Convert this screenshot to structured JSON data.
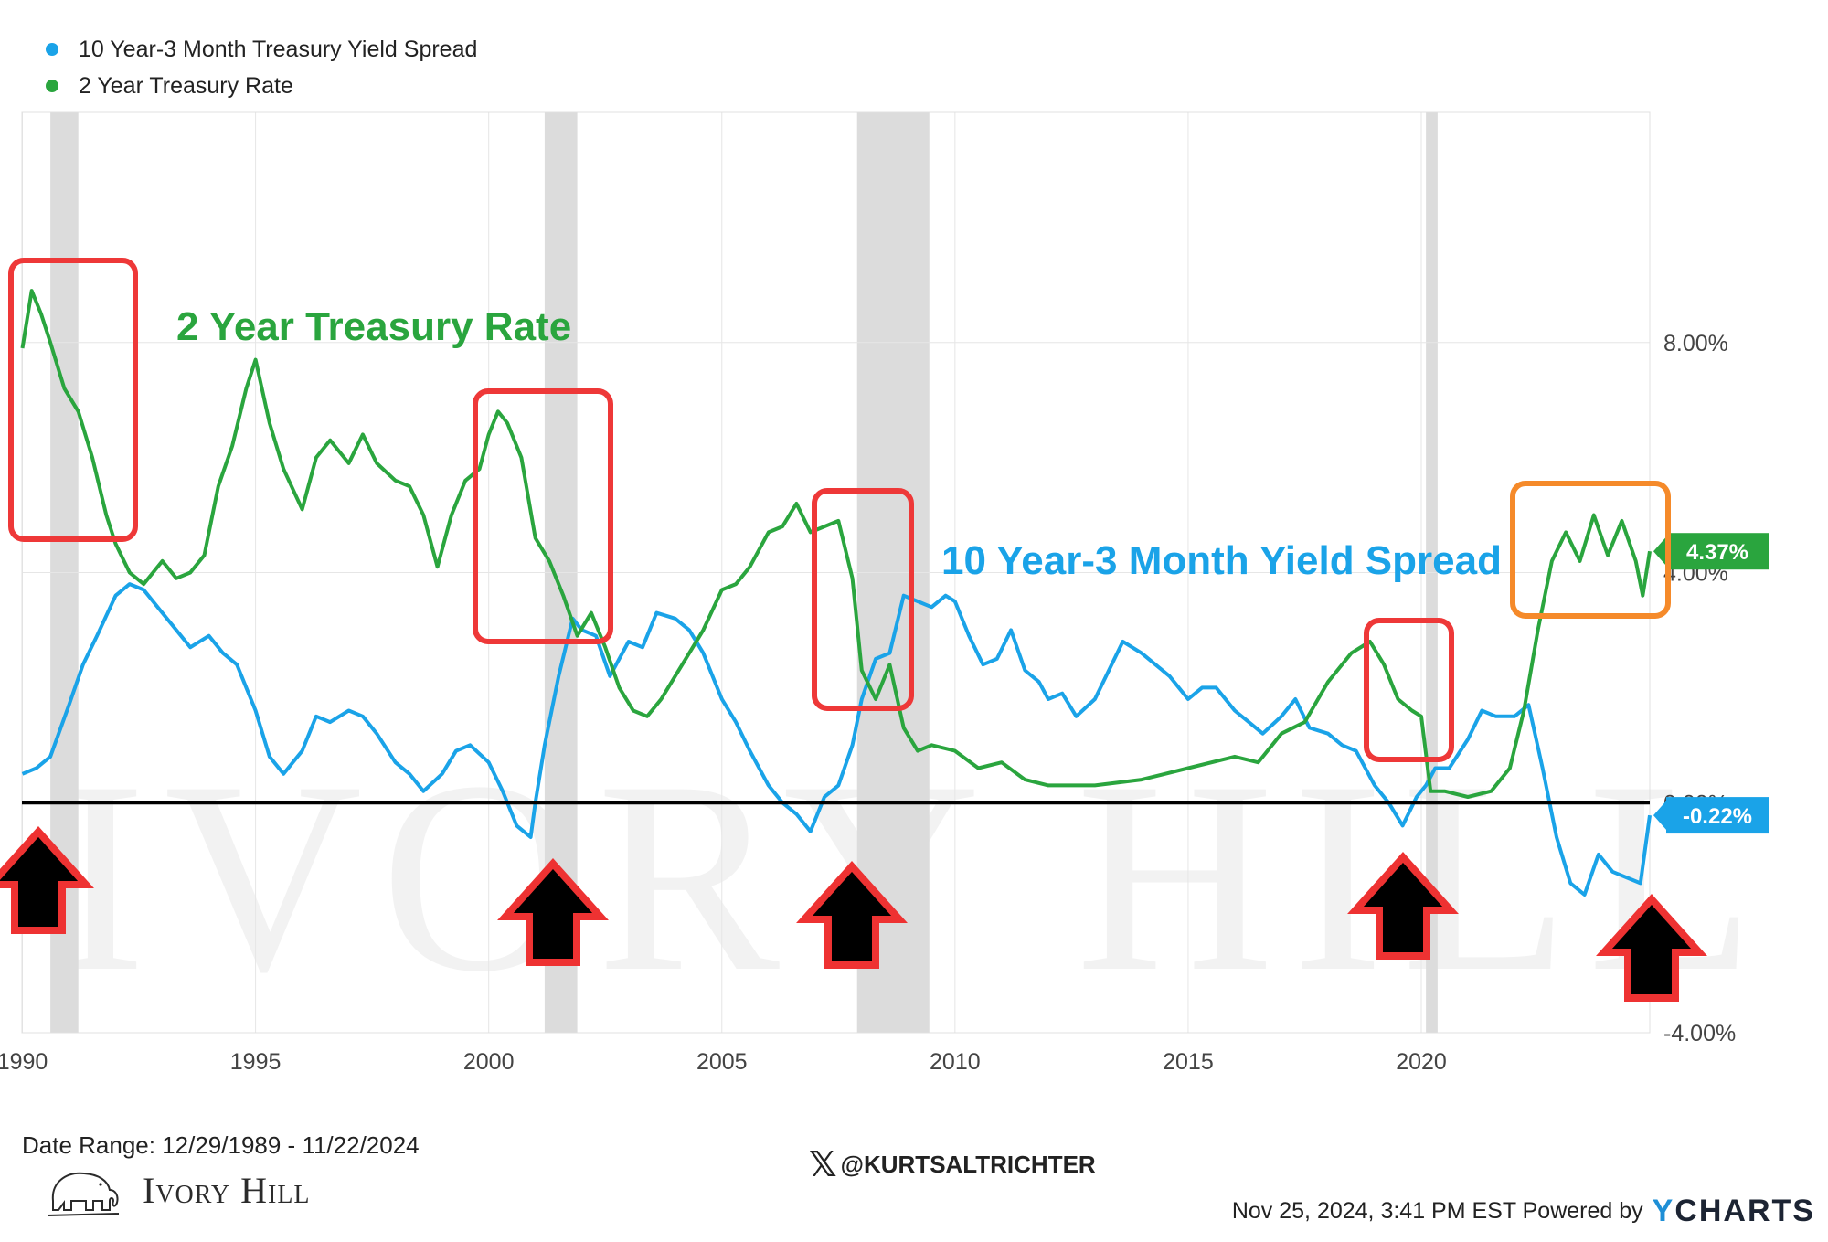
{
  "legend": [
    {
      "label": "10 Year-3 Month Treasury Yield Spread",
      "color": "#1aa3e8"
    },
    {
      "label": "2 Year Treasury Rate",
      "color": "#2aa53e"
    }
  ],
  "annotations": {
    "green_title": "2 Year Treasury Rate",
    "blue_title": "10 Year-3 Month Yield Spread",
    "green_value": "4.37%",
    "blue_value": "-0.22%"
  },
  "footer": {
    "date_range": "Date Range: 12/29/1989 - 11/22/2024",
    "handle": "@KURTSALTRICHTER",
    "timestamp": "Nov 25, 2024, 3:41 PM EST Powered by",
    "ycharts": "YCHARTS",
    "brand": "Ivory Hill"
  },
  "watermark": "IVORY HILL",
  "colors": {
    "spread": "#1aa3e8",
    "rate": "#2aa53e",
    "recession": "#dcdcdc",
    "box_red": "#ee3838",
    "box_orange": "#f58a2a",
    "arrow_red": "#ee3232",
    "zero_line": "#000000"
  },
  "chart_data": {
    "type": "line",
    "x_axis": {
      "range": [
        1989.99,
        2024.9
      ],
      "ticks": [
        "1990",
        "1995",
        "2000",
        "2005",
        "2010",
        "2015",
        "2020"
      ],
      "tick_values": [
        1990,
        1995,
        2000,
        2005,
        2010,
        2015,
        2020
      ]
    },
    "y_axis": {
      "range": [
        -4,
        12
      ],
      "ticks": [
        "8.00%",
        "4.00%",
        "0.00%",
        "-4.00%"
      ],
      "tick_values": [
        8,
        4,
        0,
        -4
      ],
      "position": "right"
    },
    "grid": true,
    "recessions": [
      [
        1990.6,
        1991.2
      ],
      [
        2001.2,
        2001.9
      ],
      [
        2007.9,
        2009.45
      ],
      [
        2020.1,
        2020.35
      ]
    ],
    "series": [
      {
        "name": "10 Year-3 Month Treasury Yield Spread",
        "x": [
          1990.0,
          1990.3,
          1990.6,
          1991.0,
          1991.3,
          1991.6,
          1992.0,
          1992.3,
          1992.6,
          1993.0,
          1993.3,
          1993.6,
          1994.0,
          1994.3,
          1994.6,
          1995.0,
          1995.3,
          1995.6,
          1996.0,
          1996.3,
          1996.6,
          1997.0,
          1997.3,
          1997.6,
          1998.0,
          1998.3,
          1998.6,
          1999.0,
          1999.3,
          1999.6,
          2000.0,
          2000.3,
          2000.6,
          2000.9,
          2001.0,
          2001.2,
          2001.5,
          2001.8,
          2002.0,
          2002.3,
          2002.6,
          2003.0,
          2003.3,
          2003.6,
          2004.0,
          2004.3,
          2004.6,
          2005.0,
          2005.3,
          2005.6,
          2006.0,
          2006.3,
          2006.6,
          2006.9,
          2007.2,
          2007.5,
          2007.8,
          2008.0,
          2008.3,
          2008.6,
          2008.9,
          2009.2,
          2009.5,
          2009.8,
          2010.0,
          2010.3,
          2010.6,
          2010.9,
          2011.2,
          2011.5,
          2011.8,
          2012.0,
          2012.3,
          2012.6,
          2013.0,
          2013.3,
          2013.6,
          2014.0,
          2014.3,
          2014.6,
          2015.0,
          2015.3,
          2015.6,
          2016.0,
          2016.3,
          2016.6,
          2017.0,
          2017.3,
          2017.6,
          2018.0,
          2018.3,
          2018.6,
          2019.0,
          2019.3,
          2019.6,
          2019.9,
          2020.1,
          2020.3,
          2020.6,
          2021.0,
          2021.3,
          2021.6,
          2022.0,
          2022.3,
          2022.6,
          2022.9,
          2023.2,
          2023.5,
          2023.8,
          2024.1,
          2024.4,
          2024.7,
          2024.9
        ],
        "y": [
          0.5,
          0.6,
          0.8,
          1.7,
          2.4,
          2.9,
          3.6,
          3.8,
          3.7,
          3.3,
          3.0,
          2.7,
          2.9,
          2.6,
          2.4,
          1.6,
          0.8,
          0.5,
          0.9,
          1.5,
          1.4,
          1.6,
          1.5,
          1.2,
          0.7,
          0.5,
          0.2,
          0.5,
          0.9,
          1.0,
          0.7,
          0.2,
          -0.4,
          -0.6,
          0.0,
          1.0,
          2.2,
          3.2,
          3.0,
          2.9,
          2.2,
          2.8,
          2.7,
          3.3,
          3.2,
          3.0,
          2.6,
          1.8,
          1.4,
          0.9,
          0.3,
          0.0,
          -0.2,
          -0.5,
          0.1,
          0.3,
          1.0,
          1.8,
          2.5,
          2.6,
          3.6,
          3.5,
          3.4,
          3.6,
          3.5,
          2.9,
          2.4,
          2.5,
          3.0,
          2.3,
          2.1,
          1.8,
          1.9,
          1.5,
          1.8,
          2.3,
          2.8,
          2.6,
          2.4,
          2.2,
          1.8,
          2.0,
          2.0,
          1.6,
          1.4,
          1.2,
          1.5,
          1.8,
          1.3,
          1.2,
          1.0,
          0.9,
          0.3,
          0.0,
          -0.4,
          0.1,
          0.3,
          0.6,
          0.6,
          1.1,
          1.6,
          1.5,
          1.5,
          1.7,
          0.6,
          -0.6,
          -1.4,
          -1.6,
          -0.9,
          -1.2,
          -1.3,
          -1.4,
          -0.22
        ]
      },
      {
        "name": "2 Year Treasury Rate",
        "x": [
          1990.0,
          1990.2,
          1990.4,
          1990.6,
          1990.9,
          1991.2,
          1991.5,
          1991.8,
          1992.0,
          1992.3,
          1992.6,
          1993.0,
          1993.3,
          1993.6,
          1993.9,
          1994.2,
          1994.5,
          1994.8,
          1995.0,
          1995.3,
          1995.6,
          1996.0,
          1996.3,
          1996.6,
          1997.0,
          1997.3,
          1997.6,
          1998.0,
          1998.3,
          1998.6,
          1998.9,
          1999.2,
          1999.5,
          1999.8,
          2000.0,
          2000.2,
          2000.4,
          2000.7,
          2001.0,
          2001.3,
          2001.6,
          2001.9,
          2002.2,
          2002.5,
          2002.8,
          2003.1,
          2003.4,
          2003.7,
          2004.0,
          2004.3,
          2004.6,
          2005.0,
          2005.3,
          2005.6,
          2006.0,
          2006.3,
          2006.6,
          2006.9,
          2007.2,
          2007.5,
          2007.8,
          2008.0,
          2008.3,
          2008.6,
          2008.9,
          2009.2,
          2009.5,
          2010.0,
          2010.5,
          2011.0,
          2011.5,
          2012.0,
          2013.0,
          2014.0,
          2015.0,
          2016.0,
          2016.5,
          2017.0,
          2017.5,
          2018.0,
          2018.5,
          2018.9,
          2019.2,
          2019.5,
          2019.8,
          2020.0,
          2020.2,
          2020.5,
          2021.0,
          2021.5,
          2021.9,
          2022.2,
          2022.5,
          2022.8,
          2023.1,
          2023.4,
          2023.7,
          2024.0,
          2024.3,
          2024.6,
          2024.75,
          2024.9
        ],
        "y": [
          7.9,
          8.9,
          8.5,
          8.0,
          7.2,
          6.8,
          6.0,
          5.0,
          4.5,
          4.0,
          3.8,
          4.2,
          3.9,
          4.0,
          4.3,
          5.5,
          6.2,
          7.2,
          7.7,
          6.6,
          5.8,
          5.1,
          6.0,
          6.3,
          5.9,
          6.4,
          5.9,
          5.6,
          5.5,
          5.0,
          4.1,
          5.0,
          5.6,
          5.8,
          6.4,
          6.8,
          6.6,
          6.0,
          4.6,
          4.2,
          3.6,
          2.9,
          3.3,
          2.7,
          2.0,
          1.6,
          1.5,
          1.8,
          2.2,
          2.6,
          3.0,
          3.7,
          3.8,
          4.1,
          4.7,
          4.8,
          5.2,
          4.7,
          4.8,
          4.9,
          3.9,
          2.3,
          1.8,
          2.4,
          1.3,
          0.9,
          1.0,
          0.9,
          0.6,
          0.7,
          0.4,
          0.3,
          0.3,
          0.4,
          0.6,
          0.8,
          0.7,
          1.2,
          1.4,
          2.1,
          2.6,
          2.8,
          2.4,
          1.8,
          1.6,
          1.5,
          0.2,
          0.2,
          0.1,
          0.2,
          0.6,
          1.6,
          3.0,
          4.2,
          4.7,
          4.2,
          5.0,
          4.3,
          4.9,
          4.2,
          3.6,
          4.37
        ]
      }
    ]
  }
}
